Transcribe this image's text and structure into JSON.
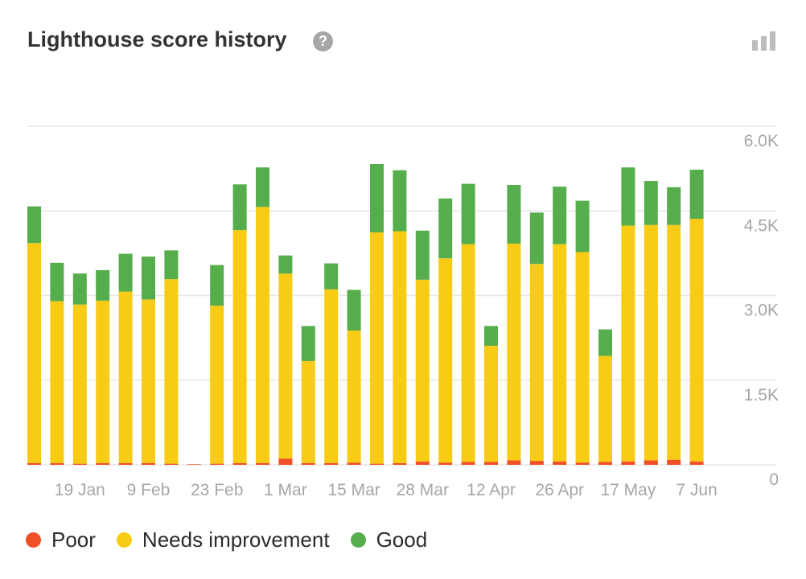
{
  "header": {
    "title": "Lighthouse score history",
    "help_icon": "question-circle-icon",
    "help_glyph": "?",
    "chart_toggle_icon": "bar-chart-icon"
  },
  "colors": {
    "poor": "#ef5025",
    "needs_improvement": "#f8cb14",
    "good": "#55ad4b",
    "grid": "#e6e6e6",
    "axis_text": "#a6a6a6"
  },
  "legend": [
    {
      "label": "Poor",
      "color": "#ef5025"
    },
    {
      "label": "Needs improvement",
      "color": "#f8cb14"
    },
    {
      "label": "Good",
      "color": "#55ad4b"
    }
  ],
  "chart_data": {
    "type": "bar",
    "stacked": true,
    "title": "Lighthouse score history",
    "y_ticks": [
      "0",
      "1.5K",
      "3.0K",
      "4.5K",
      "6.0K"
    ],
    "ylim": [
      0,
      6000
    ],
    "y_axis_position": "right",
    "grid": true,
    "legend_position": "bottom-left",
    "x_tick_labels": [
      {
        "label": "19 Jan",
        "index": 2
      },
      {
        "label": "9 Feb",
        "index": 5
      },
      {
        "label": "23 Feb",
        "index": 8
      },
      {
        "label": "1 Mar",
        "index": 11
      },
      {
        "label": "15 Mar",
        "index": 14
      },
      {
        "label": "28 Mar",
        "index": 17
      },
      {
        "label": "12 Apr",
        "index": 20
      },
      {
        "label": "26 Apr",
        "index": 23
      },
      {
        "label": "17 May",
        "index": 26
      },
      {
        "label": "7 Jun",
        "index": 29
      }
    ],
    "series": [
      {
        "name": "Poor",
        "values": [
          30,
          30,
          20,
          30,
          30,
          30,
          20,
          10,
          20,
          30,
          30,
          110,
          30,
          30,
          40,
          20,
          30,
          60,
          40,
          50,
          50,
          80,
          70,
          60,
          40,
          50,
          60,
          80,
          90,
          60
        ]
      },
      {
        "name": "Needs improvement",
        "values": [
          3900,
          2870,
          2820,
          2880,
          3040,
          2900,
          3270,
          0,
          2800,
          4130,
          4540,
          3280,
          1810,
          3080,
          2340,
          4100,
          4110,
          3220,
          3620,
          3860,
          2060,
          3840,
          3490,
          3850,
          3730,
          1880,
          4180,
          4170,
          4160,
          4300
        ]
      },
      {
        "name": "Good",
        "values": [
          650,
          680,
          550,
          540,
          670,
          760,
          510,
          0,
          720,
          810,
          700,
          320,
          620,
          460,
          720,
          1210,
          1080,
          870,
          1060,
          1070,
          350,
          1040,
          910,
          1020,
          910,
          470,
          1030,
          780,
          670,
          870
        ]
      }
    ]
  }
}
